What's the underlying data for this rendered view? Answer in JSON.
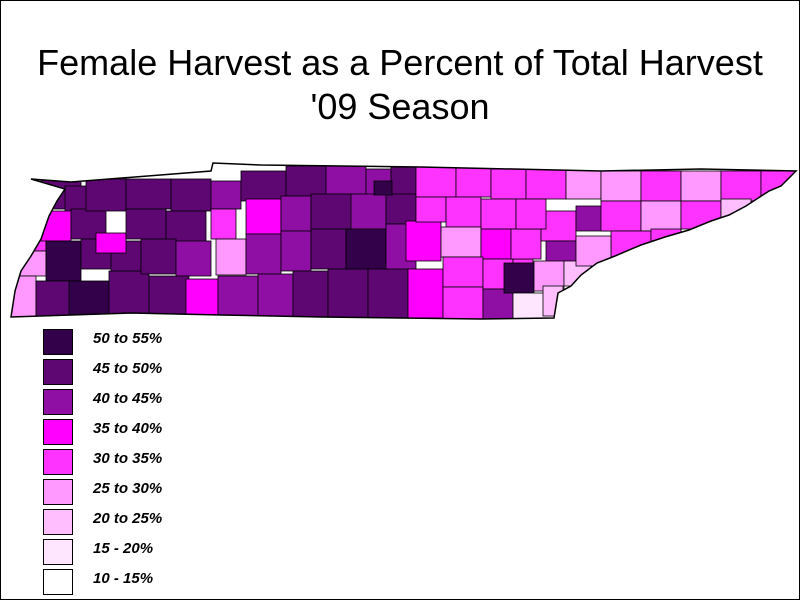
{
  "title": {
    "line1": "Female Harvest as a Percent of Total Harvest",
    "line2": "'09 Season"
  },
  "map": {
    "region": "Tennessee",
    "unit": "county",
    "boundary_color": "#000000"
  },
  "legend": [
    {
      "label": "50 to 55%",
      "color": "#33004a"
    },
    {
      "label": "45 to 50%",
      "color": "#5e0773"
    },
    {
      "label": "40 to 45%",
      "color": "#8f0fa4"
    },
    {
      "label": "35 to 40%",
      "color": "#ff00ff"
    },
    {
      "label": "30 to 35%",
      "color": "#ff33ff"
    },
    {
      "label": "25 to 30%",
      "color": "#ff99ff"
    },
    {
      "label": "20 to 25%",
      "color": "#ffbfff"
    },
    {
      "label": "15 - 20%",
      "color": "#ffe6ff"
    },
    {
      "label": "10 - 15%",
      "color": "#ffffff"
    }
  ]
}
